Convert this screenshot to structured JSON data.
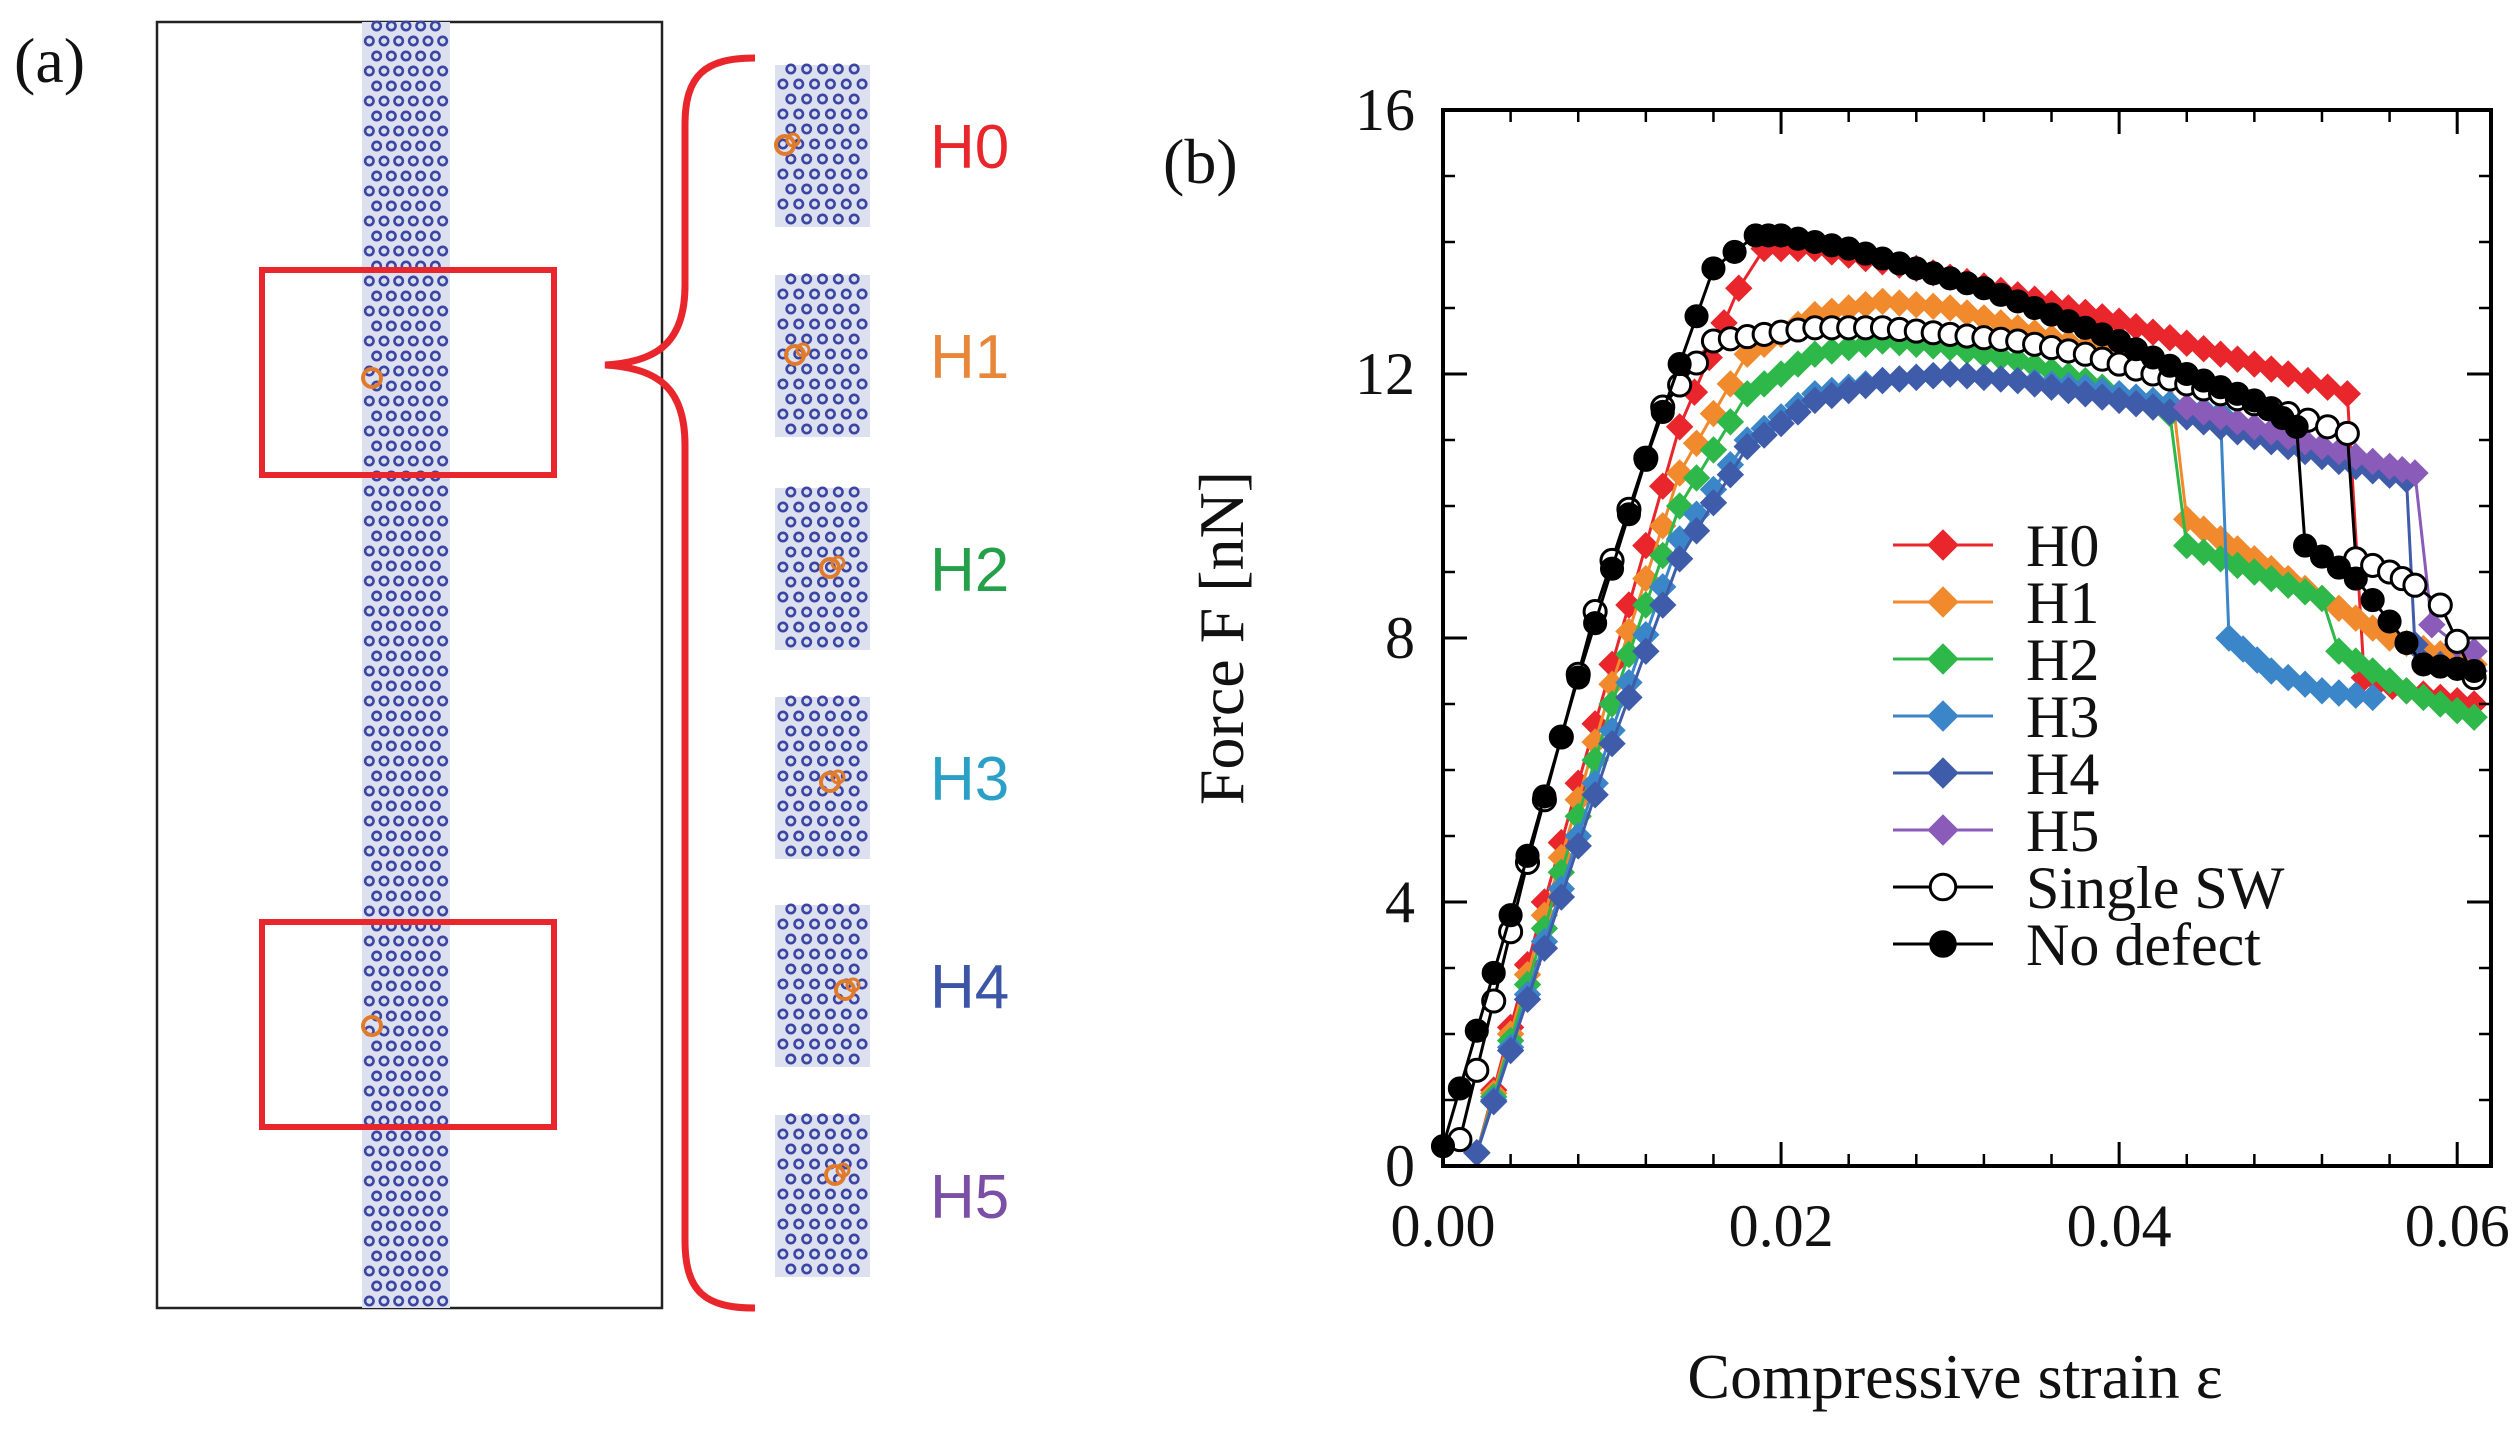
{
  "panel_a": {
    "label": "(a)",
    "variants": [
      {
        "name": "H0",
        "color": "#e8262b"
      },
      {
        "name": "H1",
        "color": "#e8863a"
      },
      {
        "name": "H2",
        "color": "#25a04a"
      },
      {
        "name": "H3",
        "color": "#2ba0c7"
      },
      {
        "name": "H4",
        "color": "#3d55a6"
      },
      {
        "name": "H5",
        "color": "#7b4fa6"
      }
    ],
    "atom_color": "#3b46a3",
    "defect_color": "#e07b2c",
    "highlight_color": "#e8262b"
  },
  "chart_data": {
    "type": "line",
    "panel_label": "(b)",
    "xlabel": "Compressive strain ε",
    "ylabel": "Force F [nN]",
    "xlim": [
      0.0,
      0.062
    ],
    "ylim": [
      0,
      16
    ],
    "x_ticks": [
      0.0,
      0.02,
      0.04,
      0.06
    ],
    "x_tick_labels": [
      "0.00",
      "0.02",
      "0.04",
      "0.06"
    ],
    "y_ticks": [
      0,
      4,
      8,
      12,
      16
    ],
    "y_tick_labels": [
      "0",
      "4",
      "8",
      "12",
      "16"
    ],
    "legend_position": "center-right",
    "series": [
      {
        "name": "H0",
        "color": "#e8262b",
        "marker": "diamond",
        "x": [
          0.002,
          0.006,
          0.01,
          0.014,
          0.0175,
          0.019,
          0.022,
          0.028,
          0.034,
          0.04,
          0.046,
          0.05,
          0.0535,
          0.0545,
          0.057,
          0.061
        ],
        "y": [
          0.2,
          4.0,
          7.6,
          11.2,
          13.3,
          13.9,
          13.9,
          13.6,
          13.2,
          12.8,
          12.3,
          12.0,
          11.7,
          7.4,
          7.2,
          7.0
        ]
      },
      {
        "name": "H1",
        "color": "#f08a2c",
        "marker": "diamond",
        "x": [
          0.002,
          0.006,
          0.01,
          0.014,
          0.018,
          0.022,
          0.026,
          0.03,
          0.034,
          0.038,
          0.043,
          0.044,
          0.048,
          0.052,
          0.056,
          0.061
        ],
        "y": [
          0.2,
          3.8,
          7.3,
          10.5,
          12.3,
          12.9,
          13.1,
          13.0,
          12.7,
          12.4,
          12.0,
          9.8,
          9.2,
          8.6,
          8.0,
          7.6
        ]
      },
      {
        "name": "H2",
        "color": "#2fb84a",
        "marker": "diamond",
        "x": [
          0.002,
          0.006,
          0.01,
          0.014,
          0.018,
          0.022,
          0.026,
          0.03,
          0.034,
          0.038,
          0.043,
          0.044,
          0.048,
          0.052,
          0.053,
          0.057,
          0.061
        ],
        "y": [
          0.2,
          3.6,
          7.0,
          10.0,
          11.7,
          12.3,
          12.5,
          12.4,
          12.2,
          11.9,
          11.4,
          9.4,
          9.0,
          8.6,
          7.8,
          7.2,
          6.8
        ]
      },
      {
        "name": "H3",
        "color": "#3b86c8",
        "marker": "diamond",
        "x": [
          0.002,
          0.006,
          0.01,
          0.014,
          0.018,
          0.022,
          0.026,
          0.03,
          0.034,
          0.038,
          0.042,
          0.046,
          0.0465,
          0.049,
          0.052,
          0.055
        ],
        "y": [
          0.2,
          3.4,
          6.6,
          9.5,
          11.0,
          11.7,
          11.9,
          12.0,
          11.9,
          11.8,
          11.6,
          11.4,
          8.0,
          7.5,
          7.2,
          7.1
        ]
      },
      {
        "name": "H4",
        "color": "#3f5cab",
        "marker": "diamond",
        "x": [
          0.002,
          0.006,
          0.01,
          0.014,
          0.018,
          0.022,
          0.026,
          0.03,
          0.034,
          0.038,
          0.042,
          0.046,
          0.05,
          0.054,
          0.057,
          0.0575,
          0.059,
          0.061
        ],
        "y": [
          0.2,
          3.3,
          6.4,
          9.2,
          10.9,
          11.6,
          11.9,
          12.0,
          11.9,
          11.7,
          11.5,
          11.2,
          10.9,
          10.6,
          10.4,
          7.9,
          7.6,
          7.5
        ]
      },
      {
        "name": "H5",
        "color": "#8a5bb8",
        "marker": "diamond",
        "x": [
          0.044,
          0.048,
          0.052,
          0.056,
          0.0575,
          0.0585,
          0.06,
          0.061
        ],
        "y": [
          11.5,
          11.2,
          10.9,
          10.6,
          10.5,
          8.2,
          7.9,
          7.8
        ]
      },
      {
        "name": "Single SW",
        "color": "#000000",
        "marker": "open-circle",
        "x": [
          0.001,
          0.005,
          0.009,
          0.013,
          0.016,
          0.019,
          0.022,
          0.026,
          0.03,
          0.034,
          0.038,
          0.042,
          0.046,
          0.05,
          0.0535,
          0.054,
          0.056,
          0.0575,
          0.059,
          0.061
        ],
        "y": [
          0.4,
          4.6,
          8.4,
          11.5,
          12.5,
          12.6,
          12.7,
          12.7,
          12.6,
          12.5,
          12.3,
          12.0,
          11.7,
          11.4,
          11.1,
          9.2,
          9.0,
          8.8,
          8.5,
          7.4
        ]
      },
      {
        "name": "No defect",
        "color": "#000000",
        "marker": "filled-circle",
        "x": [
          0.0,
          0.004,
          0.008,
          0.012,
          0.016,
          0.0185,
          0.02,
          0.024,
          0.028,
          0.032,
          0.036,
          0.04,
          0.044,
          0.048,
          0.0505,
          0.051,
          0.054,
          0.058,
          0.061
        ],
        "y": [
          0.3,
          3.8,
          7.4,
          10.7,
          13.6,
          14.1,
          14.1,
          13.9,
          13.6,
          13.3,
          12.9,
          12.5,
          12.0,
          11.6,
          11.2,
          9.4,
          8.9,
          7.6,
          7.5
        ]
      }
    ]
  }
}
